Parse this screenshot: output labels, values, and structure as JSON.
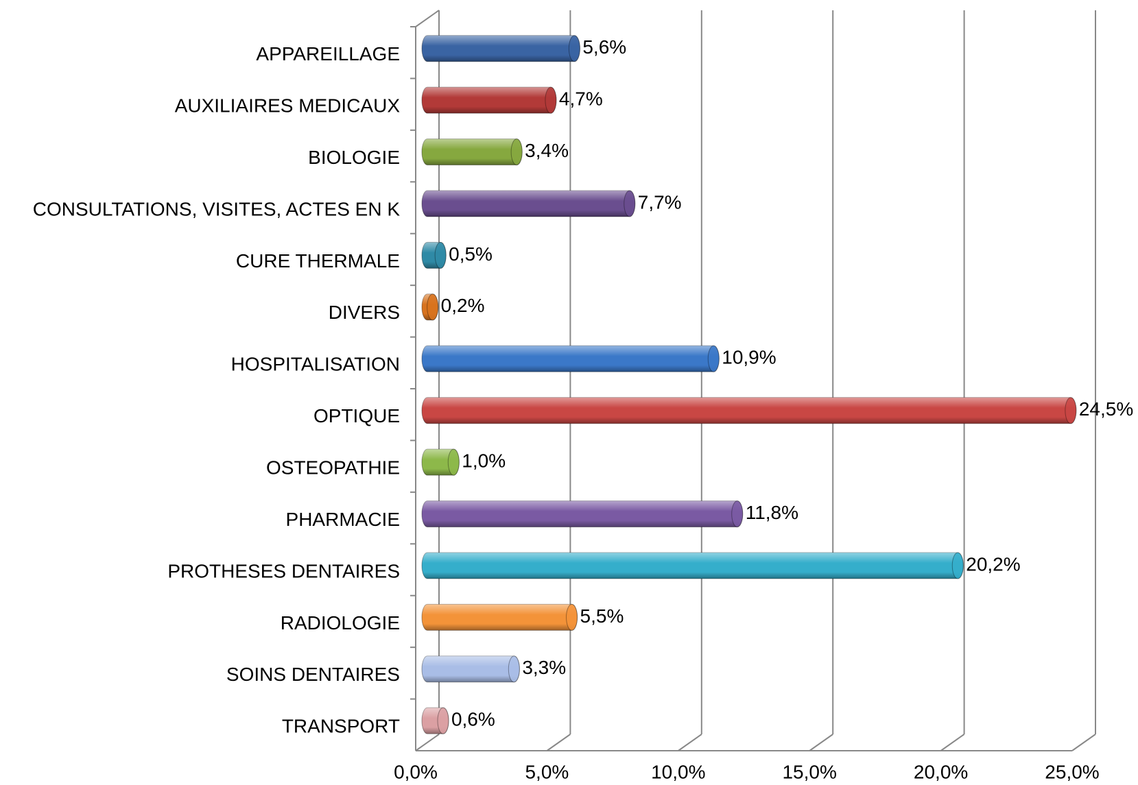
{
  "chart_data": {
    "type": "bar",
    "orientation": "horizontal",
    "categories": [
      "APPAREILLAGE",
      "AUXILIAIRES MEDICAUX",
      "BIOLOGIE",
      "CONSULTATIONS, VISITES, ACTES EN K",
      "CURE THERMALE",
      "DIVERS",
      "HOSPITALISATION",
      "OPTIQUE",
      "OSTEOPATHIE",
      "PHARMACIE",
      "PROTHESES DENTAIRES",
      "RADIOLOGIE",
      "SOINS DENTAIRES",
      "TRANSPORT"
    ],
    "values": [
      5.6,
      4.7,
      3.4,
      7.7,
      0.5,
      0.2,
      10.9,
      24.5,
      1.0,
      11.8,
      20.2,
      5.5,
      3.3,
      0.6
    ],
    "value_labels": [
      "5,6%",
      "4,7%",
      "3,4%",
      "7,7%",
      "0,5%",
      "0,2%",
      "10,9%",
      "24,5%",
      "1,0%",
      "11,8%",
      "20,2%",
      "5,5%",
      "3,3%",
      "0,6%"
    ],
    "colors": [
      "#3a64a3",
      "#b23a38",
      "#86a83f",
      "#6a4e8f",
      "#2f8aa6",
      "#d8731f",
      "#3b78c8",
      "#c94744",
      "#8db84a",
      "#7a5aa3",
      "#35aecb",
      "#f39339",
      "#a9bde6",
      "#dba0a3"
    ],
    "xlim": [
      0,
      25
    ],
    "xticks": [
      {
        "value": 0,
        "label": "0,0%"
      },
      {
        "value": 5,
        "label": "5,0%"
      },
      {
        "value": 10,
        "label": "10,0%"
      },
      {
        "value": 15,
        "label": "15,0%"
      },
      {
        "value": 20,
        "label": "20,0%"
      },
      {
        "value": 25,
        "label": "25,0%"
      }
    ],
    "grid": true
  }
}
